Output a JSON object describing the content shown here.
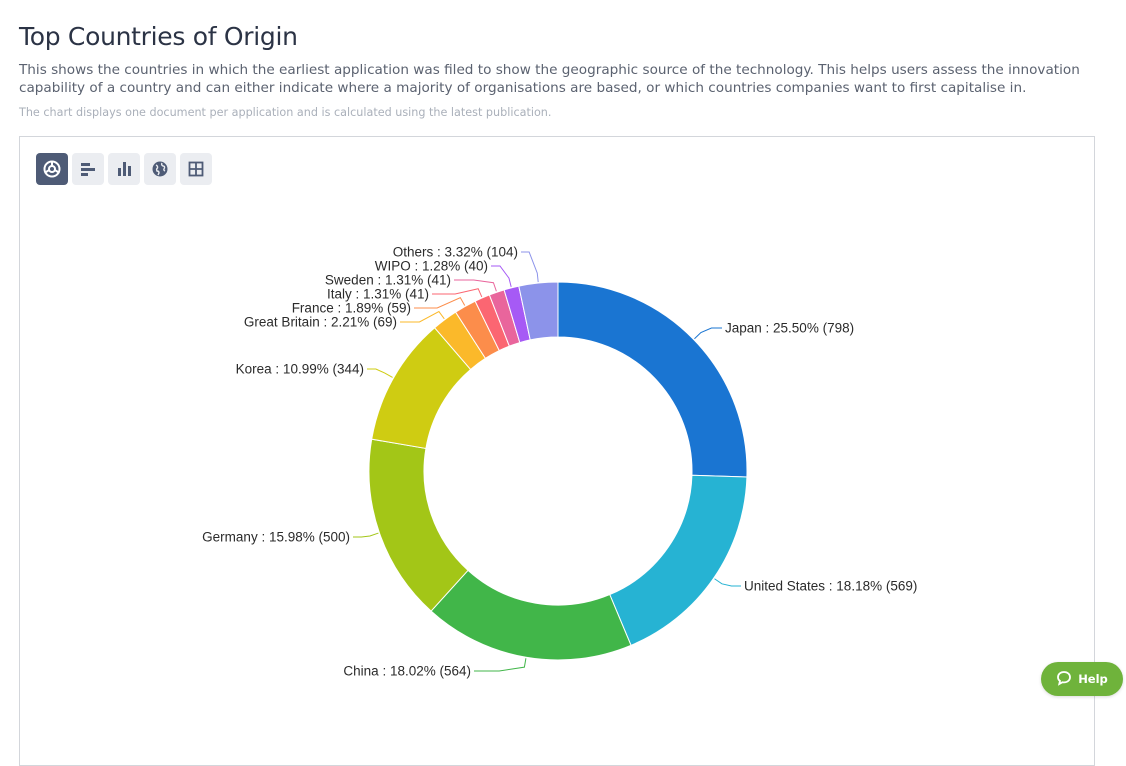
{
  "header": {
    "title": "Top Countries of Origin",
    "description": "This shows the countries in which the earliest application was filed to show the geographic source of the technology. This helps users assess the innovation capability of a country and can either indicate where a majority of organisations are based, or which countries companies want to first capitalise in.",
    "note": "The chart displays one document per application and is calculated using the latest publication."
  },
  "toolbar": {
    "buttons": [
      {
        "icon": "donut-chart-icon",
        "active": true
      },
      {
        "icon": "horizontal-bar-chart-icon",
        "active": false
      },
      {
        "icon": "vertical-bar-chart-icon",
        "active": false
      },
      {
        "icon": "globe-icon",
        "active": false
      },
      {
        "icon": "table-grid-icon",
        "active": false
      }
    ]
  },
  "help": {
    "label": "Help",
    "icon": "chat-bubble-icon",
    "color": "#6fb33b"
  },
  "chart_data": {
    "type": "pie",
    "variant": "donut",
    "title": "",
    "slices": [
      {
        "label": "Japan",
        "percent": "25.50%",
        "count": 798,
        "color": "#1a75d2"
      },
      {
        "label": "United States",
        "percent": "18.18%",
        "count": 569,
        "color": "#26b3d3"
      },
      {
        "label": "China",
        "percent": "18.02%",
        "count": 564,
        "color": "#41b649"
      },
      {
        "label": "Germany",
        "percent": "15.98%",
        "count": 500,
        "color": "#a3c617"
      },
      {
        "label": "Korea",
        "percent": "10.99%",
        "count": 344,
        "color": "#cfcc12"
      },
      {
        "label": "Great Britain",
        "percent": "2.21%",
        "count": 69,
        "color": "#fbb92a"
      },
      {
        "label": "France",
        "percent": "1.89%",
        "count": 59,
        "color": "#fc8d4b"
      },
      {
        "label": "Italy",
        "percent": "1.31%",
        "count": 41,
        "color": "#fb6672"
      },
      {
        "label": "Sweden",
        "percent": "1.31%",
        "count": 41,
        "color": "#e9659c"
      },
      {
        "label": "WIPO",
        "percent": "1.28%",
        "count": 40,
        "color": "#a65af5"
      },
      {
        "label": "Others",
        "percent": "3.32%",
        "count": 104,
        "color": "#8c93ea"
      }
    ]
  }
}
